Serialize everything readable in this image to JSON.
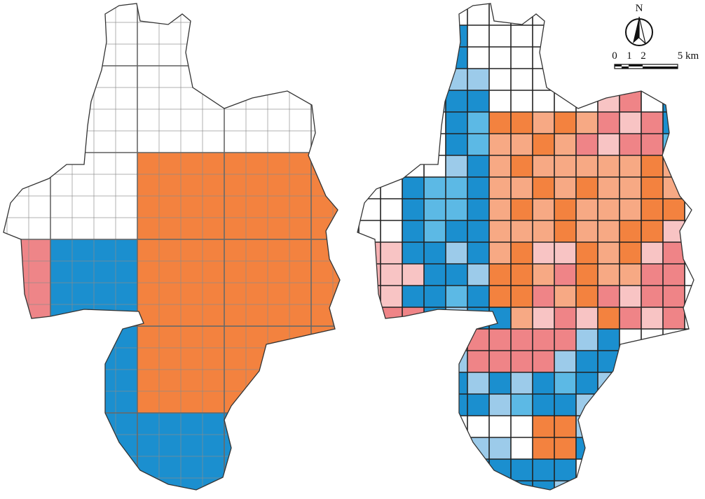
{
  "north_arrow": {
    "label": "N"
  },
  "scale_bar": {
    "labels": [
      "0",
      "1",
      "2",
      "5 km"
    ]
  }
}
